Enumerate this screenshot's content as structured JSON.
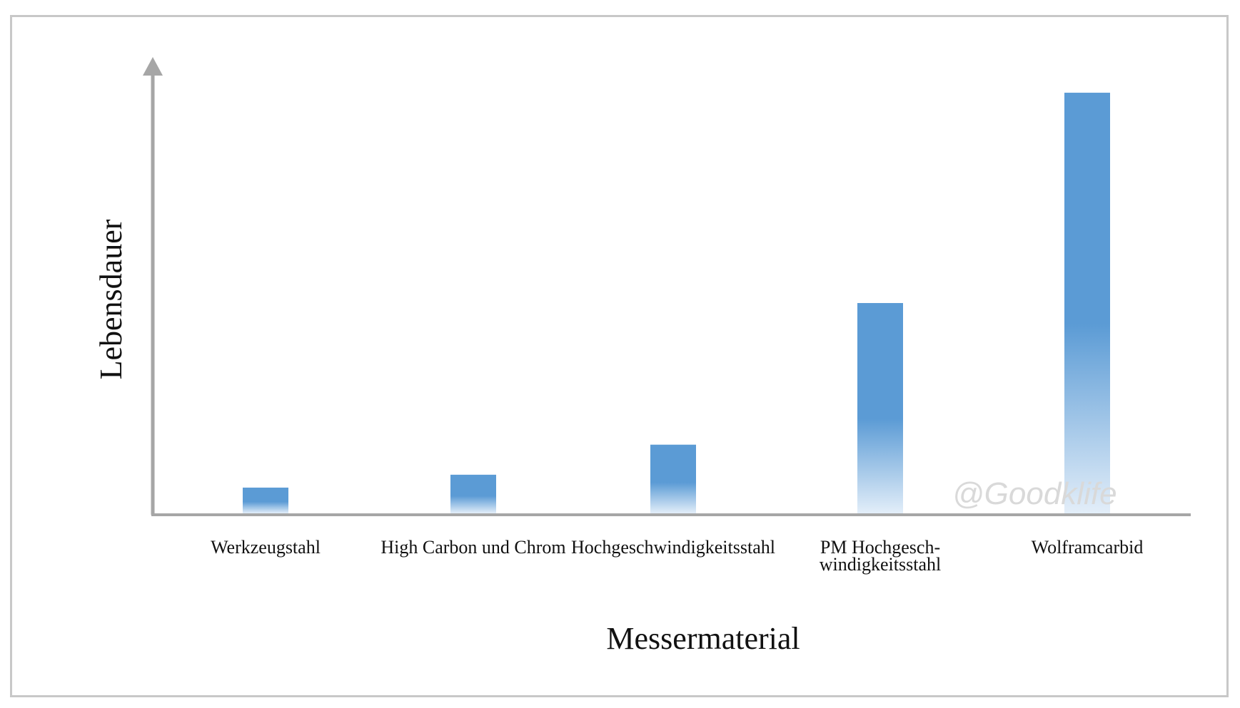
{
  "chart_data": {
    "type": "bar",
    "categories": [
      "Werkzeugstahl",
      "High Carbon und Chrom",
      "Hochgeschwindigkeitsstahl",
      "PM Hochgesch-windigkeitsstahl",
      "Wolframcarbid"
    ],
    "category_lines": [
      [
        "Werkzeugstahl"
      ],
      [
        "High Carbon und Chrom"
      ],
      [
        "Hochgeschwindigkeitsstahl"
      ],
      [
        "PM Hochgesch-",
        "windigkeitsstahl"
      ],
      [
        "Wolframcarbid"
      ]
    ],
    "values": [
      6,
      9,
      16,
      49,
      98
    ],
    "ylim": [
      0,
      100
    ],
    "xlabel": "Messermaterial",
    "ylabel": "Lebensdauer",
    "grid": false,
    "y_tick_labels": false,
    "watermark": "@Goodklife",
    "colors": {
      "bar_top": "#5b9bd5",
      "bar_bottom": "#e3eef9",
      "axis": "#a6a6a6",
      "frame": "#c8c8c8"
    }
  }
}
